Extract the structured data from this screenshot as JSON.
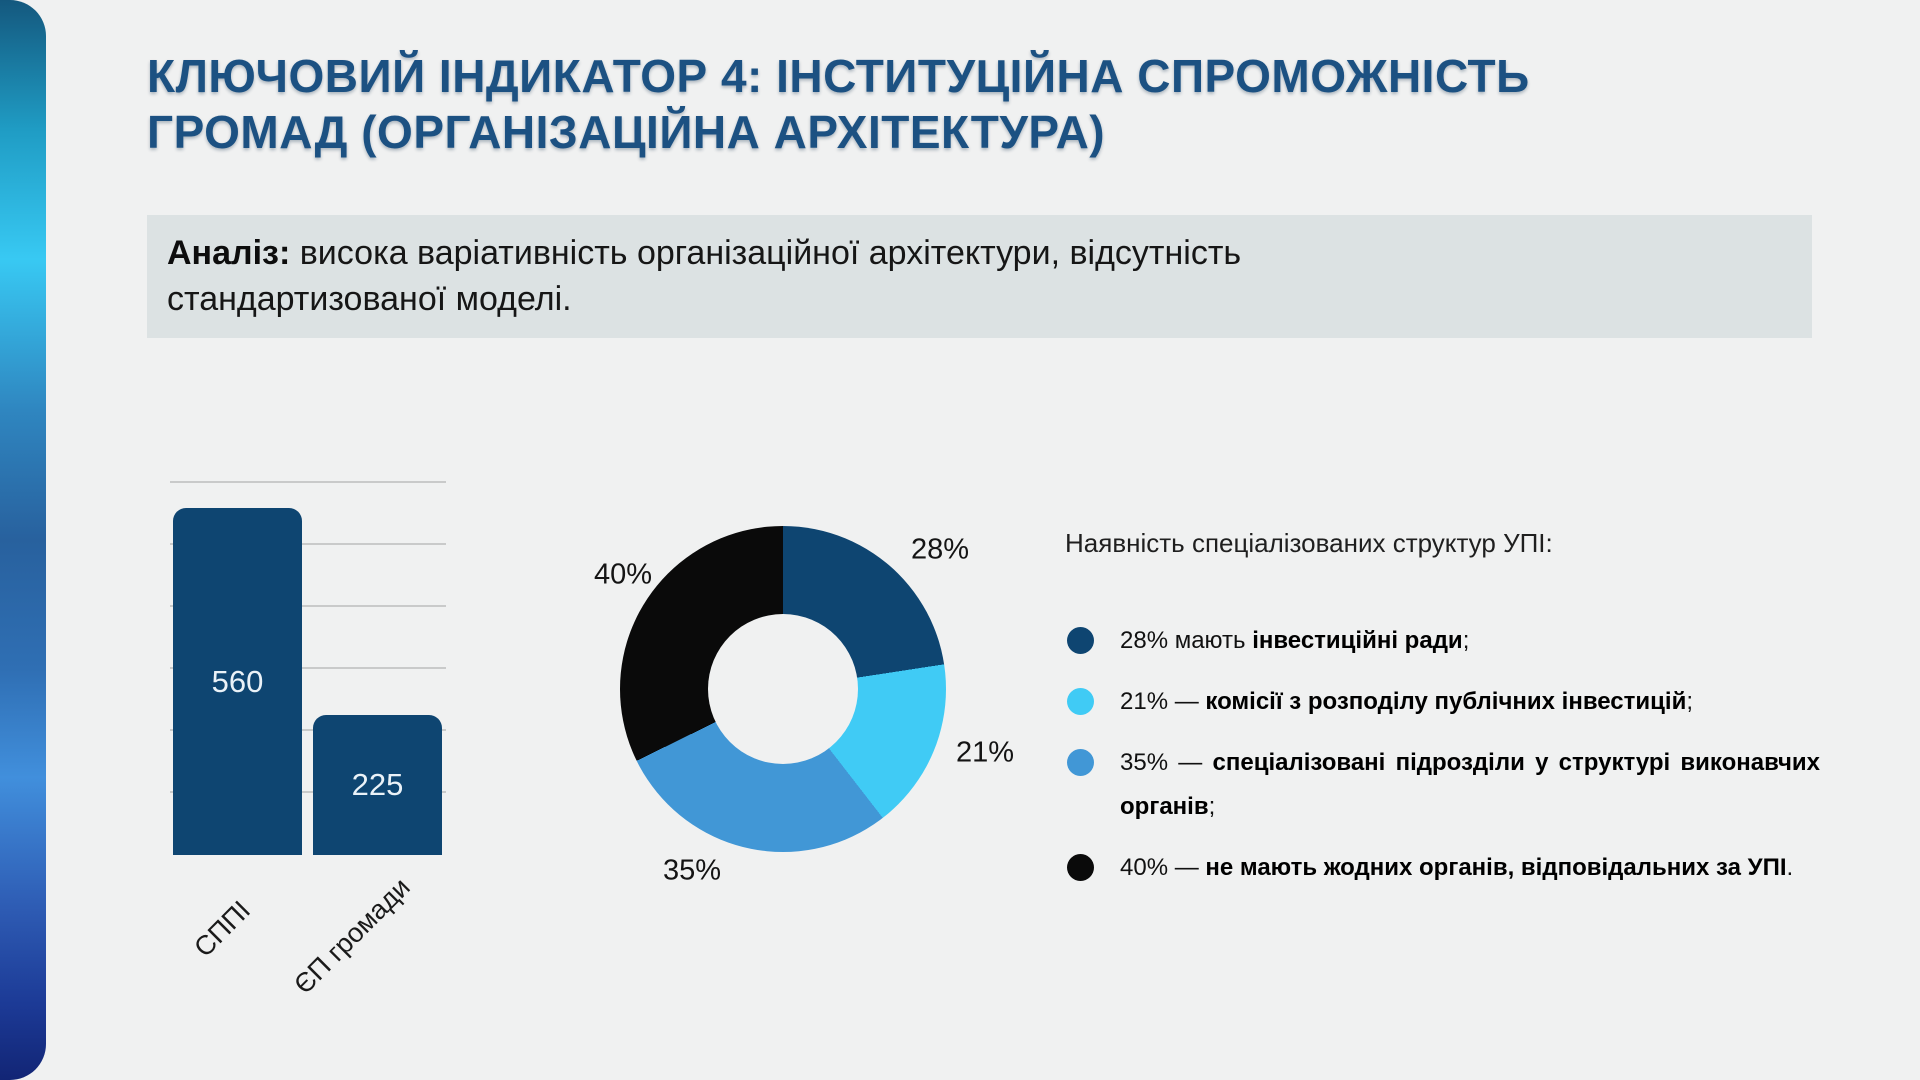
{
  "title": {
    "line1": "КЛЮЧОВИЙ ІНДИКАТОР 4: ІНСТИТУЦІЙНА СПРОМОЖНІСТЬ",
    "line2": "ГРОМАД (ОРГАНІЗАЦІЙНА АРХІТЕКТУРА)"
  },
  "analysis": {
    "label": "Аналіз:",
    "text": " висока варіативність організаційної архітектури, відсутність стандартизованої моделі."
  },
  "chart_data": [
    {
      "type": "bar",
      "categories": [
        "СППІ",
        "ЄП громади"
      ],
      "values": [
        560,
        225
      ],
      "ylim": [
        0,
        600
      ],
      "gridline_step": 100,
      "grid": true,
      "bar_color": "#0e4571",
      "value_label_color": "#eaf2f8"
    },
    {
      "type": "pie",
      "donut": true,
      "labels": [
        "28%",
        "21%",
        "35%",
        "40%"
      ],
      "values": [
        28,
        21,
        35,
        40
      ],
      "colors": [
        "#0e4571",
        "#40cbf5",
        "#4197d6",
        "#0a0a0a"
      ],
      "label_positions": [
        "top-right",
        "right",
        "bottom",
        "top-left"
      ]
    }
  ],
  "legend": {
    "heading": "Наявність спеціалізованих структур УПІ:",
    "items": [
      {
        "color": "#0e4571",
        "prefix": "28% мають ",
        "bold": "інвестиційні ради",
        "suffix": ";"
      },
      {
        "color": "#40cbf5",
        "prefix": "21% — ",
        "bold": "комісії з розподілу публічних інвестицій",
        "suffix": ";"
      },
      {
        "color": "#4197d6",
        "prefix": "35% — ",
        "bold": "спеціалізовані підрозділи у структурі виконавчих органів",
        "suffix": ";"
      },
      {
        "color": "#0a0a0a",
        "prefix": "40% — ",
        "bold": "не мають жодних органів, відповідальних за УПІ",
        "suffix": "."
      }
    ]
  },
  "style": {
    "background": "#f0f1f1",
    "analysis_box_bg": "#dce2e3",
    "title_color": "#1c5182",
    "gridline_color": "#c9caca"
  }
}
